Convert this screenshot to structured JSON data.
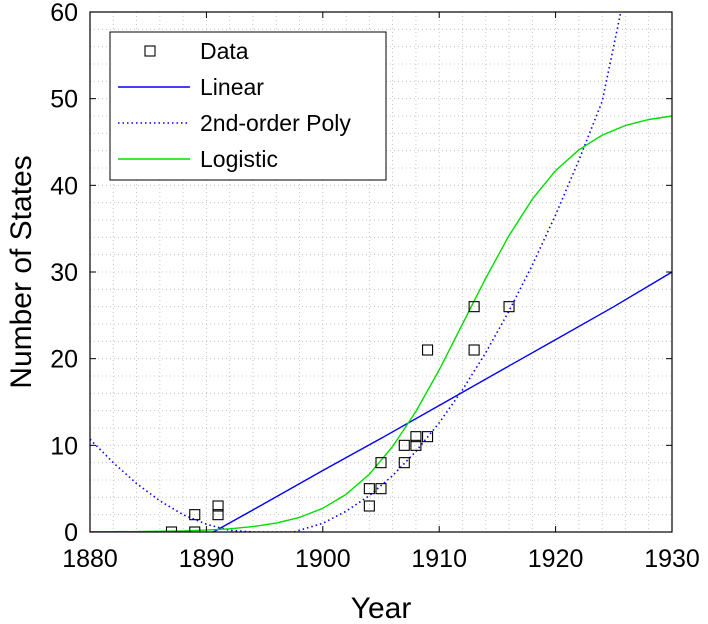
{
  "chart_data": {
    "type": "scatter",
    "title": "",
    "xlabel": "Year",
    "ylabel": "Number of States",
    "xlim": [
      1880,
      1930
    ],
    "ylim": [
      0,
      60
    ],
    "x_ticks": [
      "1880",
      "1890",
      "1900",
      "1910",
      "1920",
      "1930"
    ],
    "y_ticks": [
      "0",
      "10",
      "20",
      "30",
      "40",
      "50",
      "60"
    ],
    "grid": true,
    "legend_position": "top-left",
    "series": [
      {
        "name": "Data",
        "kind": "markers",
        "marker": "square",
        "color": "#000000",
        "points": [
          [
            1887,
            0
          ],
          [
            1889,
            0
          ],
          [
            1889,
            2
          ],
          [
            1891,
            2
          ],
          [
            1891,
            3
          ],
          [
            1904,
            3
          ],
          [
            1904,
            5
          ],
          [
            1905,
            5
          ],
          [
            1905,
            8
          ],
          [
            1907,
            8
          ],
          [
            1907,
            10
          ],
          [
            1908,
            10
          ],
          [
            1908,
            11
          ],
          [
            1909,
            11
          ],
          [
            1909,
            21
          ],
          [
            1913,
            21
          ],
          [
            1913,
            26
          ],
          [
            1916,
            26
          ]
        ]
      },
      {
        "name": "Linear",
        "kind": "line",
        "style": "solid",
        "color": "#0000ff",
        "x": [
          1890.6,
          1895,
          1900,
          1905,
          1910,
          1915,
          1920,
          1925,
          1930
        ],
        "y": [
          0,
          3.3,
          7.1,
          10.8,
          14.6,
          18.4,
          22.2,
          26.0,
          30.0
        ]
      },
      {
        "name": "2nd-order Poly",
        "kind": "line",
        "style": "dotted",
        "color": "#0000ff",
        "x": [
          1880,
          1882,
          1884,
          1886,
          1888,
          1890,
          1892,
          1894,
          1896,
          1897.5,
          1900,
          1902,
          1904,
          1906,
          1908,
          1910,
          1912,
          1914,
          1916,
          1918,
          1920,
          1922,
          1924,
          1925.6
        ],
        "y": [
          10.7,
          8.0,
          5.6,
          3.6,
          2.0,
          0.9,
          0.2,
          0,
          0,
          0,
          1.0,
          2.4,
          4.2,
          6.5,
          9.3,
          12.6,
          16.4,
          20.7,
          25.5,
          30.8,
          36.6,
          42.9,
          49.7,
          60.0
        ]
      },
      {
        "name": "Logistic",
        "kind": "line",
        "style": "solid",
        "color": "#00dd00",
        "x": [
          1880,
          1884,
          1888,
          1890,
          1892,
          1894,
          1896,
          1898,
          1900,
          1902,
          1904,
          1906,
          1908,
          1910,
          1912,
          1914,
          1916,
          1918,
          1920,
          1922,
          1924,
          1926,
          1928,
          1930
        ],
        "y": [
          0.02,
          0.05,
          0.13,
          0.22,
          0.37,
          0.62,
          1.03,
          1.69,
          2.74,
          4.34,
          6.67,
          9.86,
          13.9,
          18.7,
          24.0,
          29.3,
          34.2,
          38.4,
          41.7,
          44.1,
          45.8,
          46.9,
          47.6,
          48.0
        ]
      }
    ]
  }
}
